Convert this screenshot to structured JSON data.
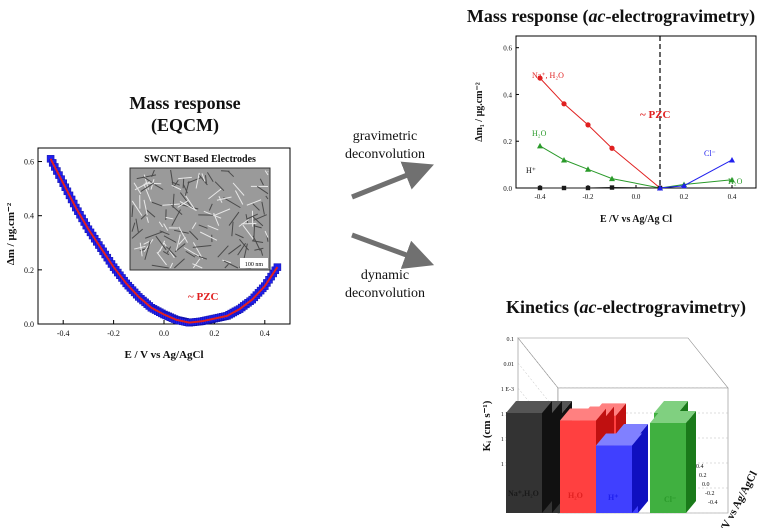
{
  "titles": {
    "eqcm_line1": "Mass response",
    "eqcm_line2": "(EQCM)",
    "ac_mass_prefix": "Mass response (",
    "ac_mass_italic": "ac",
    "ac_mass_suffix": "-electrogravimetry)",
    "kinetics_prefix": "Kinetics (",
    "kinetics_italic": "ac",
    "kinetics_suffix": "-electrogravimetry)"
  },
  "arrows": {
    "upper_line1": "gravimetric",
    "upper_line2": "deconvolution",
    "lower_line1": "dynamic",
    "lower_line2": "deconvolution"
  },
  "eqcm_chart": {
    "inset_title": "SWCNT Based Electrodes",
    "scale_bar": "100 nm",
    "pzc_label": "~ PZC",
    "ylabel": "Δm / μg.cm⁻²",
    "xlabel": "E / V vs Ag/AgCl",
    "xticks": [
      "-0.4",
      "-0.2",
      "0.0",
      "0.2",
      "0.4"
    ],
    "yticks": [
      "0.0",
      "0.2",
      "0.4",
      "0.6"
    ]
  },
  "ac_chart": {
    "pzc_label": "~ PZC",
    "ylabel": "Δm₁ / μg.cm⁻²",
    "xlabel": "E /V vs Ag/Ag Cl",
    "xticks": [
      "-0.4",
      "-0.2",
      "0.0",
      "0.2",
      "0.4"
    ],
    "yticks": [
      "0.0",
      "0.2",
      "0.4",
      "0.6"
    ],
    "label_na": "Na⁺, H₂O",
    "label_h2o_left": "H₂O",
    "label_h": "H⁺",
    "label_cl": "Cl⁻",
    "label_h2o_right": "H₂O"
  },
  "kinetics_chart": {
    "ylabel": "Kᵢ (cm s⁻¹)",
    "yticks": [
      "0.1",
      "0.01",
      "1 E-3",
      "1 E-4",
      "1 E-5",
      "1 E-6"
    ],
    "depth_label": "E/V vs Ag/AgCl",
    "depth_ticks": [
      "0.4",
      "0.2",
      "0.0",
      "-0.2",
      "-0.4"
    ],
    "series_labels": [
      "Na⁺,H₂O",
      "H₂O",
      "H⁺",
      "Cl⁻"
    ]
  },
  "colors": {
    "blue": "#2020ee",
    "red": "#e02020",
    "black": "#1a1a1a",
    "green": "#2a9a2a",
    "arrow_gray": "#707070"
  },
  "chart_data": [
    {
      "type": "scatter",
      "xlabel": "E / V vs Ag/AgCl",
      "ylabel": "Δm / μg.cm⁻²",
      "xlim": [
        -0.5,
        0.5
      ],
      "ylim": [
        0.0,
        0.65
      ],
      "series": [
        {
          "x": [
            -0.45,
            -0.4,
            -0.35,
            -0.3,
            -0.25,
            -0.2,
            -0.15,
            -0.1,
            -0.05,
            0.0,
            0.05,
            0.1,
            0.15,
            0.2,
            0.25,
            0.3,
            0.35,
            0.4,
            0.45
          ],
          "y": [
            0.61,
            0.52,
            0.43,
            0.35,
            0.28,
            0.21,
            0.15,
            0.1,
            0.06,
            0.035,
            0.015,
            0.005,
            0.01,
            0.02,
            0.03,
            0.055,
            0.09,
            0.14,
            0.21
          ]
        }
      ],
      "annotations": [
        "~ PZC"
      ]
    },
    {
      "type": "line",
      "xlabel": "E /V vs Ag/Ag Cl",
      "ylabel": "Δm₁ / μg.cm⁻²",
      "xlim": [
        -0.5,
        0.5
      ],
      "ylim": [
        0.0,
        0.65
      ],
      "series": [
        {
          "name": "Na⁺, H₂O",
          "x": [
            -0.4,
            -0.3,
            -0.2,
            -0.1,
            0.1
          ],
          "y": [
            0.47,
            0.36,
            0.27,
            0.17,
            0.0
          ]
        },
        {
          "name": "H₂O",
          "x": [
            -0.4,
            -0.3,
            -0.2,
            -0.1,
            0.1,
            0.2,
            0.4
          ],
          "y": [
            0.18,
            0.12,
            0.08,
            0.04,
            0.0,
            0.015,
            0.035
          ]
        },
        {
          "name": "H⁺",
          "x": [
            -0.4,
            -0.3,
            -0.2,
            -0.1,
            0.1
          ],
          "y": [
            0.0,
            0.0,
            0.0,
            0.002,
            0.0
          ]
        },
        {
          "name": "Cl⁻",
          "x": [
            0.1,
            0.2,
            0.4
          ],
          "y": [
            0.0,
            0.01,
            0.12
          ]
        }
      ],
      "annotations": [
        "~ PZC"
      ]
    },
    {
      "type": "bar",
      "ylabel": "Kᵢ (cm s⁻¹)",
      "categories": [
        "Na⁺,H₂O",
        "H₂O",
        "H⁺",
        "Cl⁻"
      ],
      "values": [
        0.01,
        0.005,
        0.0005,
        0.004
      ],
      "scale": "log"
    }
  ]
}
